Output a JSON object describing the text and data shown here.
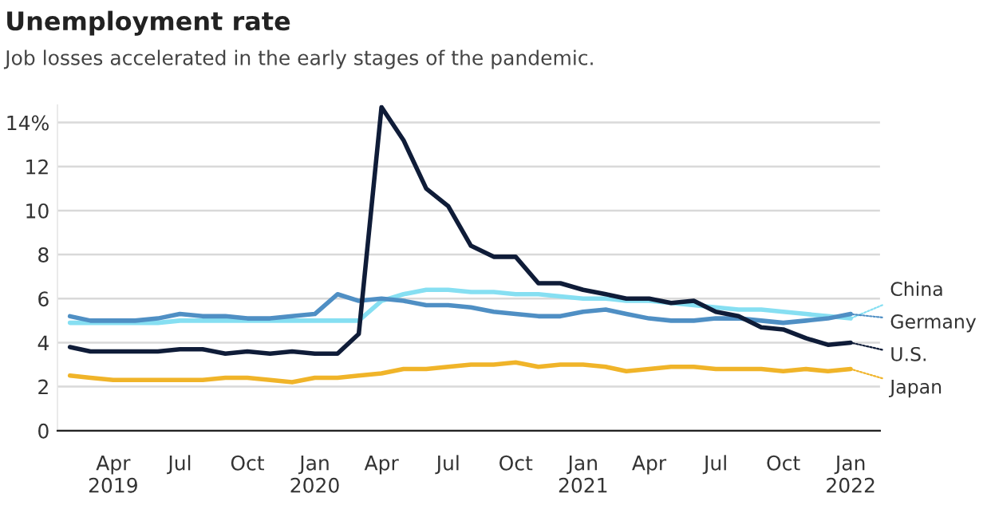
{
  "chart_data": {
    "type": "line",
    "title": "Unemployment rate",
    "subtitle": "Job losses accelerated in the early stages of the pandemic.",
    "x": [
      "2019-02",
      "2019-03",
      "2019-04",
      "2019-05",
      "2019-06",
      "2019-07",
      "2019-08",
      "2019-09",
      "2019-10",
      "2019-11",
      "2019-12",
      "2020-01",
      "2020-02",
      "2020-03",
      "2020-04",
      "2020-05",
      "2020-06",
      "2020-07",
      "2020-08",
      "2020-09",
      "2020-10",
      "2020-11",
      "2020-12",
      "2021-01",
      "2021-02",
      "2021-03",
      "2021-04",
      "2021-05",
      "2021-06",
      "2021-07",
      "2021-08",
      "2021-09",
      "2021-10",
      "2021-11",
      "2021-12",
      "2022-01"
    ],
    "series": [
      {
        "name": "China",
        "color": "#86dff2",
        "values": [
          4.9,
          4.9,
          4.9,
          4.9,
          4.9,
          5.0,
          5.0,
          5.0,
          5.0,
          5.0,
          5.0,
          5.0,
          5.0,
          5.0,
          5.9,
          6.2,
          6.4,
          6.4,
          6.3,
          6.3,
          6.2,
          6.2,
          6.1,
          6.0,
          6.0,
          5.9,
          5.9,
          5.8,
          5.7,
          5.6,
          5.5,
          5.5,
          5.4,
          5.3,
          5.2,
          5.1
        ]
      },
      {
        "name": "Germany",
        "color": "#4f8fc4",
        "values": [
          5.2,
          5.0,
          5.0,
          5.0,
          5.1,
          5.3,
          5.2,
          5.2,
          5.1,
          5.1,
          5.2,
          5.3,
          6.2,
          5.9,
          6.0,
          5.9,
          5.7,
          5.7,
          5.6,
          5.4,
          5.3,
          5.2,
          5.2,
          5.4,
          5.5,
          5.3,
          5.1,
          5.0,
          5.0,
          5.1,
          5.1,
          5.0,
          4.9,
          5.0,
          5.1,
          5.3
        ]
      },
      {
        "name": "U.S.",
        "color": "#0f1c38",
        "values": [
          3.8,
          3.6,
          3.6,
          3.6,
          3.6,
          3.7,
          3.7,
          3.5,
          3.6,
          3.5,
          3.6,
          3.5,
          3.5,
          4.4,
          14.7,
          13.2,
          11.0,
          10.2,
          8.4,
          7.9,
          7.9,
          6.7,
          6.7,
          6.4,
          6.2,
          6.0,
          6.0,
          5.8,
          5.9,
          5.4,
          5.2,
          4.7,
          4.6,
          4.2,
          3.9,
          4.0
        ]
      },
      {
        "name": "Japan",
        "color": "#f0b429",
        "values": [
          2.5,
          2.4,
          2.3,
          2.3,
          2.3,
          2.3,
          2.3,
          2.4,
          2.4,
          2.3,
          2.2,
          2.4,
          2.4,
          2.5,
          2.6,
          2.8,
          2.8,
          2.9,
          3.0,
          3.0,
          3.1,
          2.9,
          3.0,
          3.0,
          2.9,
          2.7,
          2.8,
          2.9,
          2.9,
          2.8,
          2.8,
          2.8,
          2.7,
          2.8,
          2.7,
          2.8
        ]
      }
    ],
    "ylim": [
      0,
      14.8
    ],
    "yticks": [
      0,
      2,
      4,
      6,
      8,
      10,
      12,
      {
        "value": 14,
        "label": "14%"
      }
    ],
    "xlim": [
      "2019-01-15",
      "2022-02-10"
    ],
    "xticks": [
      {
        "value": "2019-04",
        "label": "Apr\n2019"
      },
      {
        "value": "2019-07",
        "label": "Jul"
      },
      {
        "value": "2019-10",
        "label": "Oct"
      },
      {
        "value": "2020-01",
        "label": "Jan\n2020"
      },
      {
        "value": "2020-04",
        "label": "Apr"
      },
      {
        "value": "2020-07",
        "label": "Jul"
      },
      {
        "value": "2020-10",
        "label": "Oct"
      },
      {
        "value": "2021-01",
        "label": "Jan\n2021"
      },
      {
        "value": "2021-04",
        "label": "Apr"
      },
      {
        "value": "2021-07",
        "label": "Jul"
      },
      {
        "value": "2021-10",
        "label": "Oct"
      },
      {
        "value": "2022-01",
        "label": "Jan\n2022"
      }
    ],
    "grid": "y",
    "legend": "right"
  }
}
